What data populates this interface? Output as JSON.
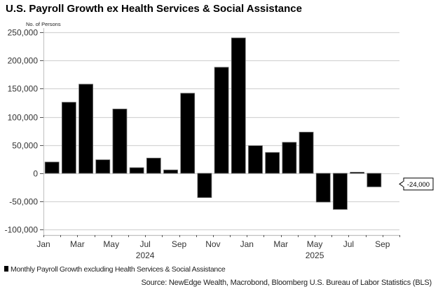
{
  "chart_data": {
    "type": "bar",
    "title": "U.S. Payroll Growth ex Health Services & Social Assistance",
    "ylabel": "No. of Persons",
    "xlabel": "",
    "ylim": [
      -100000,
      250000
    ],
    "yticks": [
      250000,
      200000,
      150000,
      100000,
      50000,
      0,
      -50000,
      -100000
    ],
    "ytick_labels": [
      "250,000",
      "200,000",
      "150,000",
      "100,000",
      "50,000",
      "0",
      "-50,000",
      "-100,000"
    ],
    "grid": true,
    "x_range": [
      "2024-01",
      "2025-09"
    ],
    "xtick_labels": [
      {
        "label": "Jan",
        "month_index": 0
      },
      {
        "label": "Mar",
        "month_index": 2
      },
      {
        "label": "May",
        "month_index": 4
      },
      {
        "label": "Jul",
        "month_index": 6
      },
      {
        "label": "Sep",
        "month_index": 8
      },
      {
        "label": "Nov",
        "month_index": 10
      },
      {
        "label": "Jan",
        "month_index": 12
      },
      {
        "label": "Mar",
        "month_index": 14
      },
      {
        "label": "May",
        "month_index": 16
      },
      {
        "label": "Jul",
        "month_index": 18
      },
      {
        "label": "Sep",
        "month_index": 20
      }
    ],
    "year_labels": [
      {
        "label": "2024",
        "center_month_index": 6
      },
      {
        "label": "2025",
        "center_month_index": 16
      }
    ],
    "categories": [
      "Jan 2024",
      "Feb 2024",
      "Mar 2024",
      "Apr 2024",
      "May 2024",
      "Jun 2024",
      "Jul 2024",
      "Aug 2024",
      "Sep 2024",
      "Oct 2024",
      "Nov 2024",
      "Dec 2024",
      "Jan 2025",
      "Feb 2025",
      "Mar 2025",
      "Apr 2025",
      "May 2025",
      "Jun 2025",
      "Jul 2025",
      "Aug 2025"
    ],
    "series": [
      {
        "name": "Monthly Payroll Growth excluding Health Services & Social Assistance",
        "color": "#000000",
        "values": [
          20000,
          126000,
          158000,
          24000,
          114000,
          10000,
          27000,
          6000,
          142000,
          -43000,
          188000,
          240000,
          49000,
          37000,
          55000,
          73000,
          -51000,
          -64000,
          2000,
          -24000
        ]
      }
    ],
    "annotations": [
      {
        "text": "-24,000",
        "category": "Aug 2025",
        "value": -24000
      }
    ],
    "legend": {
      "position": "bottom-left",
      "entries": [
        "Monthly Payroll Growth excluding Health Services & Social Assistance"
      ]
    },
    "source": "Source: NewEdge Wealth, Macrobond, Bloomberg U.S. Bureau of Labor Statistics (BLS)"
  },
  "colors": {
    "bar": "#000000",
    "grid": "#d4d4d4",
    "axis": "#c0c0c0"
  }
}
